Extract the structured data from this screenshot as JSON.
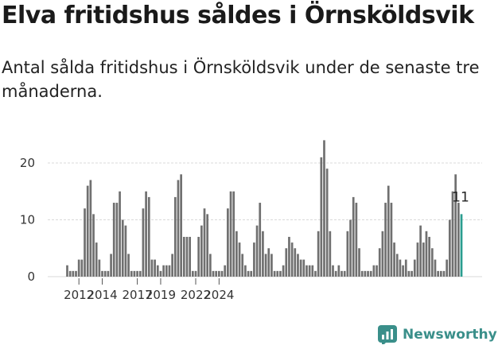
{
  "title": "Elva fritidshus såldes i Örnsköldsvik",
  "subtitle": "Antal sålda fritidshus i Örnsköldsvik under de senaste tre månaderna.",
  "brand": {
    "name": "Newsworthy",
    "icon": "newsworthy-logo-icon"
  },
  "colors": {
    "bar": "#707070",
    "highlight": "#2a9d8f",
    "grid": "#d9d9d9",
    "brand": "#3a8f8a"
  },
  "chart_data": {
    "type": "bar",
    "frequency": "quarterly",
    "start": "2011Q1",
    "ylim": [
      0,
      25
    ],
    "yticks": [
      0,
      10,
      20
    ],
    "xticks": [
      "2012",
      "2014",
      "2017",
      "2019",
      "2022",
      "2024"
    ],
    "grid": true,
    "values": [
      2,
      1,
      1,
      1,
      3,
      3,
      12,
      16,
      17,
      11,
      6,
      3,
      1,
      1,
      1,
      4,
      13,
      13,
      15,
      10,
      9,
      4,
      1,
      1,
      1,
      1,
      12,
      15,
      14,
      3,
      3,
      2,
      1,
      2,
      2,
      2,
      4,
      14,
      17,
      18,
      7,
      7,
      7,
      1,
      1,
      7,
      9,
      12,
      11,
      4,
      1,
      1,
      1,
      1,
      2,
      12,
      15,
      15,
      8,
      6,
      4,
      2,
      1,
      1,
      6,
      9,
      13,
      8,
      4,
      5,
      4,
      1,
      1,
      1,
      2,
      5,
      7,
      6,
      5,
      4,
      3,
      3,
      2,
      2,
      2,
      1,
      8,
      21,
      24,
      19,
      8,
      2,
      1,
      2,
      1,
      1,
      8,
      10,
      14,
      13,
      5,
      1,
      1,
      1,
      1,
      2,
      2,
      5,
      8,
      13,
      16,
      13,
      6,
      4,
      3,
      2,
      3,
      1,
      1,
      3,
      6,
      9,
      6,
      8,
      7,
      5,
      3,
      1,
      1,
      1,
      3,
      10,
      15,
      18,
      13,
      11
    ],
    "highlight_last": true,
    "last_value_label": "11"
  }
}
